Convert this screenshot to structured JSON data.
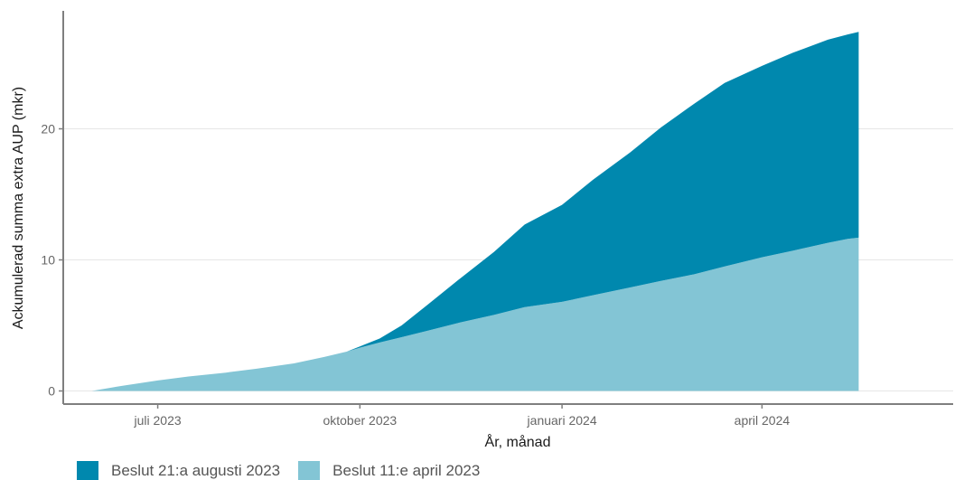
{
  "chart_data": {
    "type": "area",
    "stacked": true,
    "title": "",
    "xlabel": "År, månad",
    "ylabel": "Ackumulerad summa extra AUP (mkr)",
    "xlim": [
      "2023-05-19",
      "2024-06-27"
    ],
    "ylim": [
      -1,
      29
    ],
    "x_ticks": [
      {
        "date": "2023-07-01",
        "label": "juli 2023"
      },
      {
        "date": "2023-10-01",
        "label": "oktober 2023"
      },
      {
        "date": "2024-01-01",
        "label": "januari 2024"
      },
      {
        "date": "2024-04-01",
        "label": "april 2024"
      }
    ],
    "y_ticks": [
      0,
      10,
      20
    ],
    "grid": "horizontal",
    "legend_position": "bottom-left",
    "x": [
      "2023-06-01",
      "2023-06-15",
      "2023-07-01",
      "2023-07-15",
      "2023-08-01",
      "2023-08-15",
      "2023-09-01",
      "2023-09-15",
      "2023-09-25",
      "2023-10-01",
      "2023-10-10",
      "2023-10-20",
      "2023-11-01",
      "2023-11-15",
      "2023-12-01",
      "2023-12-15",
      "2024-01-01",
      "2024-01-15",
      "2024-02-01",
      "2024-02-15",
      "2024-03-01",
      "2024-03-15",
      "2024-04-01",
      "2024-04-15",
      "2024-05-01",
      "2024-05-10",
      "2024-05-15"
    ],
    "series": [
      {
        "name": "Beslut 11:e april 2023",
        "color": "#83c5d5",
        "values": [
          0.0,
          0.4,
          0.8,
          1.1,
          1.4,
          1.7,
          2.1,
          2.6,
          3.0,
          3.3,
          3.7,
          4.1,
          4.6,
          5.2,
          5.8,
          6.4,
          6.8,
          7.3,
          7.9,
          8.4,
          8.9,
          9.5,
          10.2,
          10.7,
          11.3,
          11.6,
          11.7
        ]
      },
      {
        "name": "Beslut 21:a augusti 2023",
        "color": "#0088ae",
        "values": [
          0,
          0,
          0,
          0,
          0,
          0,
          0,
          0,
          0,
          0.1,
          0.3,
          0.9,
          2.0,
          3.3,
          4.8,
          6.3,
          7.4,
          8.8,
          10.3,
          11.7,
          13.0,
          14.0,
          14.6,
          15.1,
          15.5,
          15.6,
          15.7
        ]
      }
    ]
  }
}
